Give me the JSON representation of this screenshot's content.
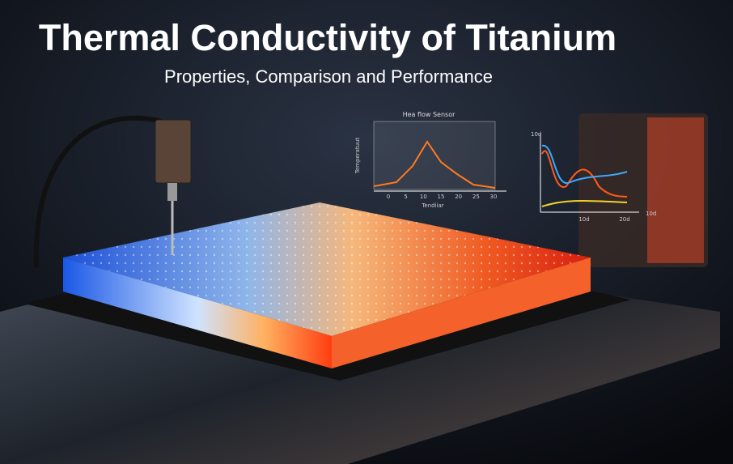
{
  "header": {
    "title": "Thermal Conductivity of Titanium",
    "subtitle": "Properties, Comparison and Performance"
  },
  "inset_left": {
    "title": "Hea flow Sensor",
    "y_label": "Temperatuut",
    "x_label": "Tendiiar",
    "x_ticks": [
      "0",
      "5",
      "10",
      "15",
      "20",
      "25",
      "30"
    ]
  },
  "inset_right": {
    "y_label": "10d",
    "x_ticks": [
      "10d",
      "20d"
    ],
    "x_label": "10d"
  }
}
